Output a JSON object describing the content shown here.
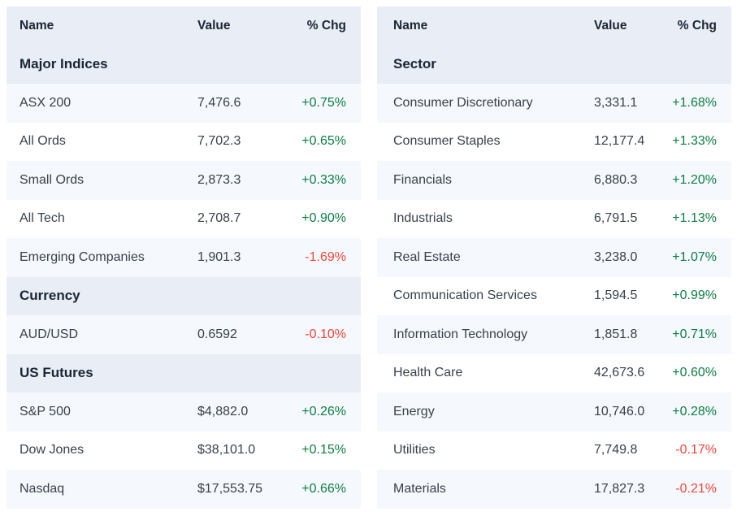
{
  "colors": {
    "positive_change": "#0e7d45",
    "negative_change": "#f0463a",
    "header_background": "#e9edf5",
    "stripe_row_background": "#f5f8fc",
    "header_text": "#1b2534",
    "row_text": "#39414b"
  },
  "left": {
    "header": {
      "name": "Name",
      "value": "Value",
      "chg": "% Chg"
    },
    "rows": [
      {
        "type": "section",
        "name": "Major Indices"
      },
      {
        "type": "data",
        "name": "ASX 200",
        "value": "7,476.6",
        "chg": "+0.75%",
        "direction": "up"
      },
      {
        "type": "data",
        "name": "All Ords",
        "value": "7,702.3",
        "chg": "+0.65%",
        "direction": "up"
      },
      {
        "type": "data",
        "name": "Small Ords",
        "value": "2,873.3",
        "chg": "+0.33%",
        "direction": "up"
      },
      {
        "type": "data",
        "name": "All Tech",
        "value": "2,708.7",
        "chg": "+0.90%",
        "direction": "up"
      },
      {
        "type": "data",
        "name": "Emerging Companies",
        "value": "1,901.3",
        "chg": "-1.69%",
        "direction": "down"
      },
      {
        "type": "section",
        "name": "Currency"
      },
      {
        "type": "data",
        "name": "AUD/USD",
        "value": "0.6592",
        "chg": "-0.10%",
        "direction": "down"
      },
      {
        "type": "section",
        "name": "US Futures"
      },
      {
        "type": "data",
        "name": "S&P 500",
        "value": "$4,882.0",
        "chg": "+0.26%",
        "direction": "up"
      },
      {
        "type": "data",
        "name": "Dow Jones",
        "value": "$38,101.0",
        "chg": "+0.15%",
        "direction": "up"
      },
      {
        "type": "data",
        "name": "Nasdaq",
        "value": "$17,553.75",
        "chg": "+0.66%",
        "direction": "up"
      }
    ]
  },
  "right": {
    "header": {
      "name": "Name",
      "value": "Value",
      "chg": "% Chg"
    },
    "rows": [
      {
        "type": "section",
        "name": "Sector"
      },
      {
        "type": "data",
        "name": "Consumer Discretionary",
        "value": "3,331.1",
        "chg": "+1.68%",
        "direction": "up"
      },
      {
        "type": "data",
        "name": "Consumer Staples",
        "value": "12,177.4",
        "chg": "+1.33%",
        "direction": "up"
      },
      {
        "type": "data",
        "name": "Financials",
        "value": "6,880.3",
        "chg": "+1.20%",
        "direction": "up"
      },
      {
        "type": "data",
        "name": "Industrials",
        "value": "6,791.5",
        "chg": "+1.13%",
        "direction": "up"
      },
      {
        "type": "data",
        "name": "Real Estate",
        "value": "3,238.0",
        "chg": "+1.07%",
        "direction": "up"
      },
      {
        "type": "data",
        "name": "Communication Services",
        "value": "1,594.5",
        "chg": "+0.99%",
        "direction": "up"
      },
      {
        "type": "data",
        "name": "Information Technology",
        "value": "1,851.8",
        "chg": "+0.71%",
        "direction": "up"
      },
      {
        "type": "data",
        "name": "Health Care",
        "value": "42,673.6",
        "chg": "+0.60%",
        "direction": "up"
      },
      {
        "type": "data",
        "name": "Energy",
        "value": "10,746.0",
        "chg": "+0.28%",
        "direction": "up"
      },
      {
        "type": "data",
        "name": "Utilities",
        "value": "7,749.8",
        "chg": "-0.17%",
        "direction": "down"
      },
      {
        "type": "data",
        "name": "Materials",
        "value": "17,827.3",
        "chg": "-0.21%",
        "direction": "down"
      }
    ]
  }
}
